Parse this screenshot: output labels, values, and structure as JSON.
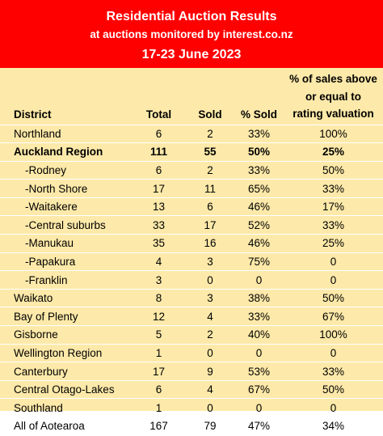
{
  "banner": {
    "title": "Residential Auction Results",
    "subtitle": "at auctions monitored by interest.co.nz",
    "date_range": "17-23 June 2023"
  },
  "colors": {
    "banner_bg": "#ff0000",
    "banner_text": "#ffffff",
    "table_bg": "#fde9a9",
    "row_divider": "#ffffff"
  },
  "table": {
    "headers": {
      "district": "District",
      "total": "Total",
      "sold": "Sold",
      "pct_sold": "% Sold",
      "above_line1": "% of sales above",
      "above_line2": "or equal to",
      "above_line3": "rating valuation"
    },
    "rows": [
      {
        "district": "Northland",
        "total": "6",
        "sold": "2",
        "pct_sold": "33%",
        "above": "100%",
        "sub": false,
        "bold": false
      },
      {
        "district": "Auckland Region",
        "total": "111",
        "sold": "55",
        "pct_sold": "50%",
        "above": "25%",
        "sub": false,
        "bold": true
      },
      {
        "district": "-Rodney",
        "total": "6",
        "sold": "2",
        "pct_sold": "33%",
        "above": "50%",
        "sub": true,
        "bold": false
      },
      {
        "district": "-North Shore",
        "total": "17",
        "sold": "11",
        "pct_sold": "65%",
        "above": "33%",
        "sub": true,
        "bold": false
      },
      {
        "district": "-Waitakere",
        "total": "13",
        "sold": "6",
        "pct_sold": "46%",
        "above": "17%",
        "sub": true,
        "bold": false
      },
      {
        "district": "-Central suburbs",
        "total": "33",
        "sold": "17",
        "pct_sold": "52%",
        "above": "33%",
        "sub": true,
        "bold": false
      },
      {
        "district": "-Manukau",
        "total": "35",
        "sold": "16",
        "pct_sold": "46%",
        "above": "25%",
        "sub": true,
        "bold": false
      },
      {
        "district": "-Papakura",
        "total": "4",
        "sold": "3",
        "pct_sold": "75%",
        "above": "0",
        "sub": true,
        "bold": false
      },
      {
        "district": "-Franklin",
        "total": "3",
        "sold": "0",
        "pct_sold": "0",
        "above": "0",
        "sub": true,
        "bold": false
      },
      {
        "district": "Waikato",
        "total": "8",
        "sold": "3",
        "pct_sold": "38%",
        "above": "50%",
        "sub": false,
        "bold": false
      },
      {
        "district": "Bay of Plenty",
        "total": "12",
        "sold": "4",
        "pct_sold": "33%",
        "above": "67%",
        "sub": false,
        "bold": false
      },
      {
        "district": "Gisborne",
        "total": "5",
        "sold": "2",
        "pct_sold": "40%",
        "above": "100%",
        "sub": false,
        "bold": false
      },
      {
        "district": "Wellington Region",
        "total": "1",
        "sold": "0",
        "pct_sold": "0",
        "above": "0",
        "sub": false,
        "bold": false
      },
      {
        "district": "Canterbury",
        "total": "17",
        "sold": "9",
        "pct_sold": "53%",
        "above": "33%",
        "sub": false,
        "bold": false
      },
      {
        "district": "Central Otago-Lakes",
        "total": "6",
        "sold": "4",
        "pct_sold": "67%",
        "above": "50%",
        "sub": false,
        "bold": false
      },
      {
        "district": "Southland",
        "total": "1",
        "sold": "0",
        "pct_sold": "0",
        "above": "0",
        "sub": false,
        "bold": false
      },
      {
        "district": "All of Aotearoa",
        "total": "167",
        "sold": "79",
        "pct_sold": "47%",
        "above": "34%",
        "sub": false,
        "bold": false
      }
    ]
  }
}
